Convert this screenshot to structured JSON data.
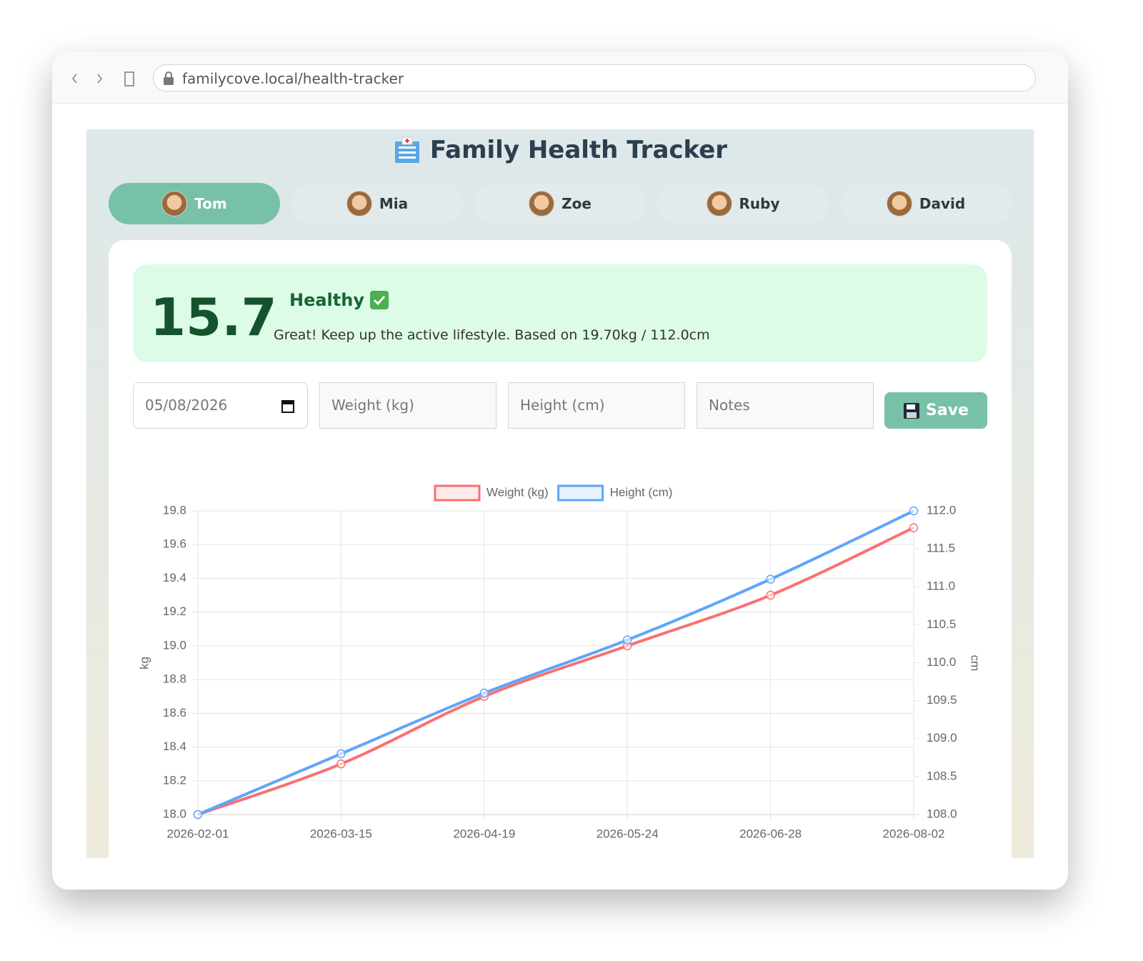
{
  "browser": {
    "url": "familycove.local/health-tracker"
  },
  "header": {
    "title": "Family Health Tracker"
  },
  "tabs": [
    "Tom",
    "Mia",
    "Zoe",
    "Ruby",
    "David"
  ],
  "bmi": {
    "value": 15.7,
    "status": "Healthy",
    "message": "Great! Keep up the active lifestyle. Based on 19.70kg / 112.0cm"
  },
  "form": {
    "date": "05/08/2026",
    "weight_placeholder": "Weight (kg)",
    "height_placeholder": "Height (cm)",
    "notes_placeholder": "Notes",
    "save_button": "Save"
  },
  "chart_data": {
    "type": "line",
    "categories": [
      "2026-02-01",
      "2026-03-15",
      "2026-04-19",
      "2026-05-24",
      "2026-06-28",
      "2026-08-02"
    ],
    "series": [
      {
        "name": "Weight (kg)",
        "color": "#f87171",
        "values": [
          18.0,
          18.3,
          18.7,
          19.0,
          19.3,
          19.7
        ]
      },
      {
        "name": "Height (cm)",
        "color": "#60a5fa",
        "axis": "y2",
        "values": [
          108.0,
          108.8,
          109.6,
          110.3,
          111.1,
          112.0
        ]
      }
    ],
    "ylabel": "kg",
    "y2label": "cm",
    "ylim": [
      18.0,
      19.8
    ],
    "yticks": [
      {
        "value": 18.0,
        "label": "18.0"
      },
      18.2,
      18.4,
      18.6,
      18.8,
      {
        "value": 19.0,
        "label": "19.0"
      },
      19.2,
      19.4,
      19.6,
      19.8
    ],
    "y2lim": [
      108.0,
      112.0
    ],
    "y2ticks": [
      {
        "value": 108.0,
        "label": "108.0"
      },
      108.5,
      {
        "value": 109.0,
        "label": "109.0"
      },
      109.5,
      {
        "value": 110.0,
        "label": "110.0"
      },
      110.5,
      {
        "value": 111.0,
        "label": "111.0"
      },
      111.5,
      {
        "value": 112.0,
        "label": "112.0"
      }
    ],
    "grid": true,
    "legend": "top"
  }
}
